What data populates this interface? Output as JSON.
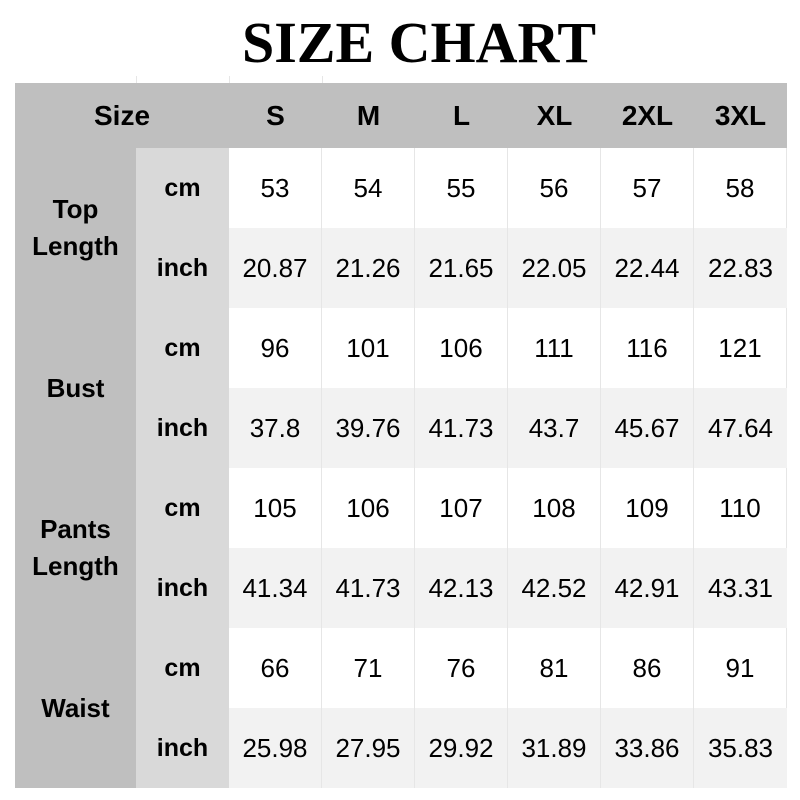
{
  "title": "SIZE CHART",
  "header": {
    "corner": "Size",
    "sizes": [
      "S",
      "M",
      "L",
      "XL",
      "2XL",
      "3XL"
    ]
  },
  "colors": {
    "header_bg": "#bfbfbf",
    "unit_bg": "#d9d9d9",
    "inch_row_bg": "#f2f2f2",
    "cm_row_bg": "#ffffff"
  },
  "rows": [
    {
      "label": "Top\nLength",
      "cm_label": "cm",
      "inch_label": "inch",
      "cm": [
        "53",
        "54",
        "55",
        "56",
        "57",
        "58"
      ],
      "inch": [
        "20.87",
        "21.26",
        "21.65",
        "22.05",
        "22.44",
        "22.83"
      ]
    },
    {
      "label": "Bust",
      "cm_label": "cm",
      "inch_label": "inch",
      "cm": [
        "96",
        "101",
        "106",
        "111",
        "116",
        "121"
      ],
      "inch": [
        "37.8",
        "39.76",
        "41.73",
        "43.7",
        "45.67",
        "47.64"
      ]
    },
    {
      "label": "Pants\nLength",
      "cm_label": "cm",
      "inch_label": "inch",
      "cm": [
        "105",
        "106",
        "107",
        "108",
        "109",
        "110"
      ],
      "inch": [
        "41.34",
        "41.73",
        "42.13",
        "42.52",
        "42.91",
        "43.31"
      ]
    },
    {
      "label": "Waist",
      "cm_label": "cm",
      "inch_label": "inch",
      "cm": [
        "66",
        "71",
        "76",
        "81",
        "86",
        "91"
      ],
      "inch": [
        "25.98",
        "27.95",
        "29.92",
        "31.89",
        "33.86",
        "35.83"
      ]
    }
  ]
}
